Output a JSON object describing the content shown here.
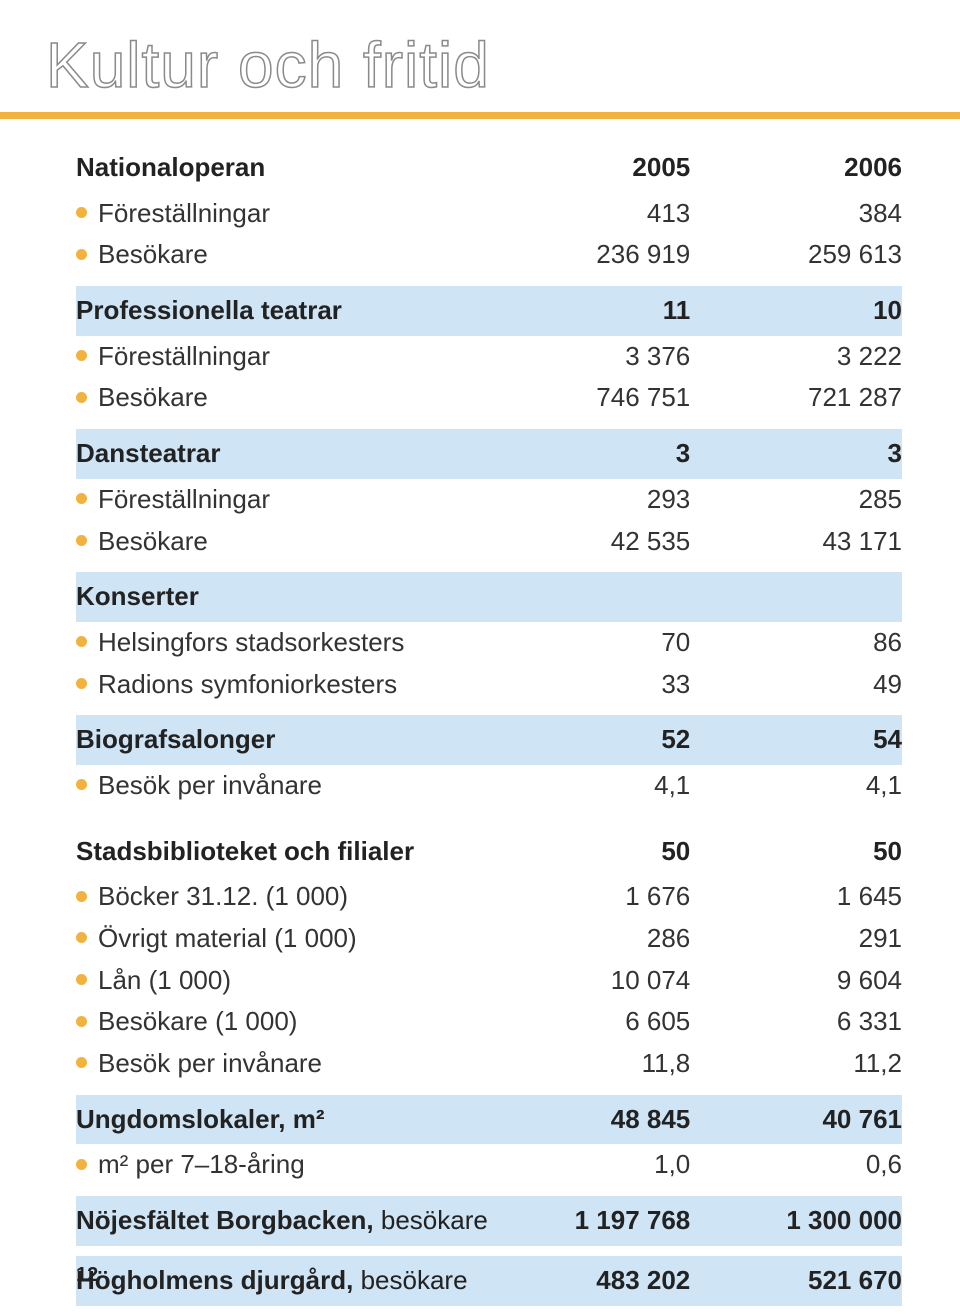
{
  "page": {
    "title": "Kultur och fritid",
    "page_number": "12"
  },
  "styling": {
    "title_stroke_color": "#8a8a8a",
    "title_fill": "#ffffff",
    "title_fontsize": 64,
    "underline_color": "#f2b23e",
    "body_fontsize": 26,
    "shade_color": "#cfe4f5",
    "bullet_color": "#f2b23e",
    "text_color": "#333333",
    "bold_color": "#222222",
    "col_widths_pct": [
      56,
      22,
      22
    ]
  },
  "table": {
    "years": [
      "2005",
      "2006"
    ],
    "sections": [
      {
        "label": "Nationaloperan",
        "shaded": false,
        "header_values": [
          "2005",
          "2006"
        ],
        "rows": [
          {
            "label": "Föreställningar",
            "v1": "413",
            "v2": "384"
          },
          {
            "label": "Besökare",
            "v1": "236 919",
            "v2": "259 613"
          }
        ]
      },
      {
        "label": "Professionella teatrar",
        "shaded": true,
        "header_values": [
          "11",
          "10"
        ],
        "rows": [
          {
            "label": "Föreställningar",
            "v1": "3 376",
            "v2": "3 222"
          },
          {
            "label": "Besökare",
            "v1": "746 751",
            "v2": "721 287"
          }
        ]
      },
      {
        "label": "Dansteatrar",
        "shaded": true,
        "header_values": [
          "3",
          "3"
        ],
        "rows": [
          {
            "label": "Föreställningar",
            "v1": "293",
            "v2": "285"
          },
          {
            "label": "Besökare",
            "v1": "42 535",
            "v2": "43 171"
          }
        ]
      },
      {
        "label": "Konserter",
        "shaded": true,
        "header_values": [
          "",
          ""
        ],
        "rows": [
          {
            "label": "Helsingfors stadsorkesters",
            "v1": "70",
            "v2": "86"
          },
          {
            "label": "Radions symfoniorkesters",
            "v1": "33",
            "v2": "49"
          }
        ]
      },
      {
        "label": "Biografsalonger",
        "shaded": true,
        "header_values": [
          "52",
          "54"
        ],
        "rows": [
          {
            "label": "Besök per invånare",
            "v1": "4,1",
            "v2": "4,1"
          }
        ]
      },
      {
        "label": "Stadsbiblioteket och filialer",
        "shaded": false,
        "header_values": [
          "50",
          "50"
        ],
        "rows": [
          {
            "label": "Böcker 31.12. (1 000)",
            "v1": "1 676",
            "v2": "1 645"
          },
          {
            "label": "Övrigt material (1 000)",
            "v1": "286",
            "v2": "291"
          },
          {
            "label": "Lån (1 000)",
            "v1": "10 074",
            "v2": "9 604"
          },
          {
            "label": "Besökare (1 000)",
            "v1": "6 605",
            "v2": "6 331"
          },
          {
            "label": "Besök per invånare",
            "v1": "11,8",
            "v2": "11,2"
          }
        ]
      },
      {
        "label": "Ungdomslokaler, m²",
        "shaded": true,
        "header_values": [
          "48 845",
          "40 761"
        ],
        "rows": [
          {
            "label": "m² per 7–18-åring",
            "v1": "1,0",
            "v2": "0,6"
          }
        ]
      },
      {
        "label_before": "Nöjesfältet Borgbacken,",
        "label_after": " besökare",
        "shaded": true,
        "header_values": [
          "1 197 768",
          "1 300 000"
        ],
        "rows": []
      },
      {
        "label_before": "Högholmens djurgård,",
        "label_after": " besökare",
        "shaded": true,
        "header_values": [
          "483 202",
          "521 670"
        ],
        "rows": []
      }
    ]
  }
}
